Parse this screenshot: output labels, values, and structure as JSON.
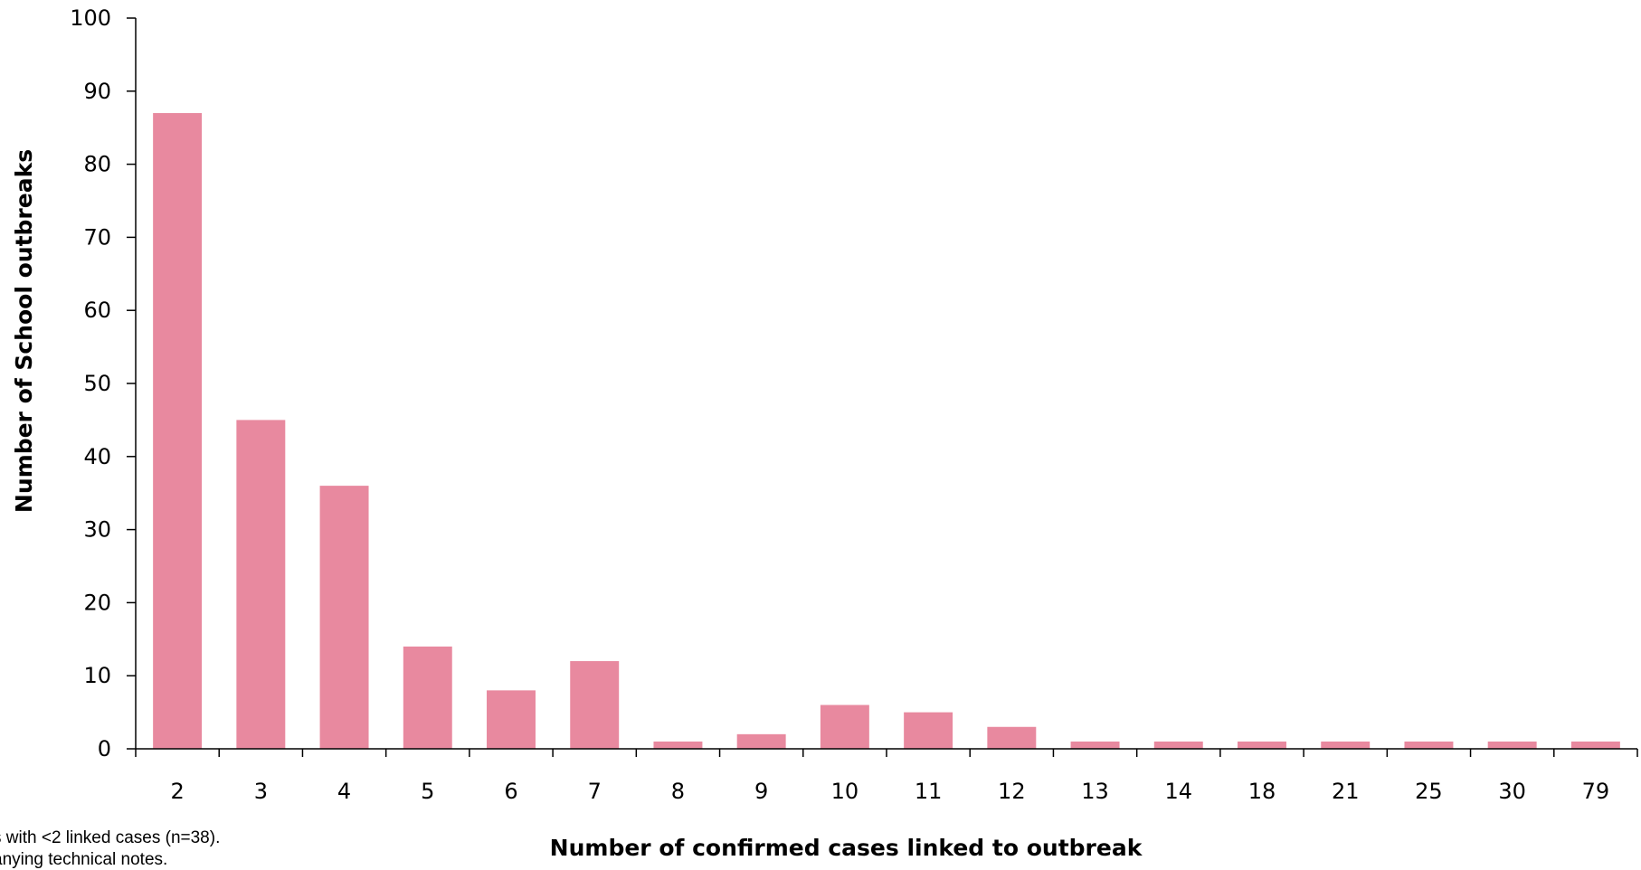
{
  "chart_data": {
    "type": "bar",
    "title": "",
    "xlabel": "Number of confirmed cases linked to outbreak",
    "ylabel": "Number of School outbreaks",
    "categories": [
      "2",
      "3",
      "4",
      "5",
      "6",
      "7",
      "8",
      "9",
      "10",
      "11",
      "12",
      "13",
      "14",
      "18",
      "21",
      "25",
      "30",
      "79"
    ],
    "values": [
      87,
      45,
      36,
      14,
      8,
      12,
      1,
      2,
      6,
      5,
      3,
      1,
      1,
      1,
      1,
      1,
      1,
      1
    ],
    "ylim": [
      0,
      100
    ],
    "yticks": [
      0,
      10,
      20,
      30,
      40,
      50,
      60,
      70,
      80,
      90,
      100
    ],
    "grid": false,
    "legend": "none",
    "bar_color": "#e8899f"
  },
  "footnotes": [
    "s with <2 linked cases (n=38).",
    "anying technical notes."
  ]
}
